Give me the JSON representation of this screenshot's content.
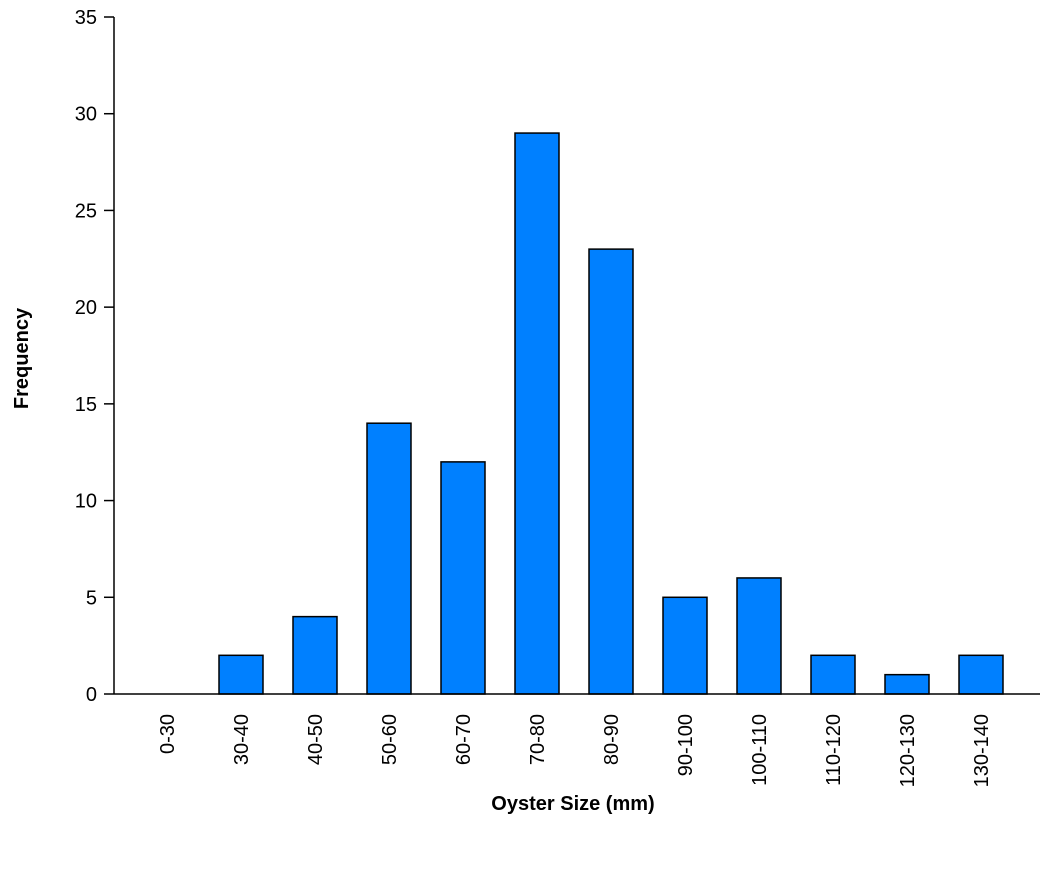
{
  "chart_data": {
    "type": "bar",
    "title": "",
    "xlabel": "Oyster Size (mm)",
    "ylabel": "Frequency",
    "categories": [
      "0-30",
      "30-40",
      "40-50",
      "50-60",
      "60-70",
      "70-80",
      "80-90",
      "90-100",
      "100-110",
      "110-120",
      "120-130",
      "130-140"
    ],
    "values": [
      0,
      2,
      4,
      14,
      12,
      29,
      23,
      5,
      6,
      2,
      1,
      2
    ],
    "ylim": [
      0,
      35
    ],
    "yticks": [
      0,
      5,
      10,
      15,
      20,
      25,
      30,
      35
    ],
    "ytick_labels": [
      "0",
      "5",
      "10",
      "15",
      "20",
      "25",
      "30",
      "35"
    ],
    "grid": false,
    "legend": "none",
    "bar_color": "#0080FF",
    "bar_edge_color": "#000000"
  }
}
